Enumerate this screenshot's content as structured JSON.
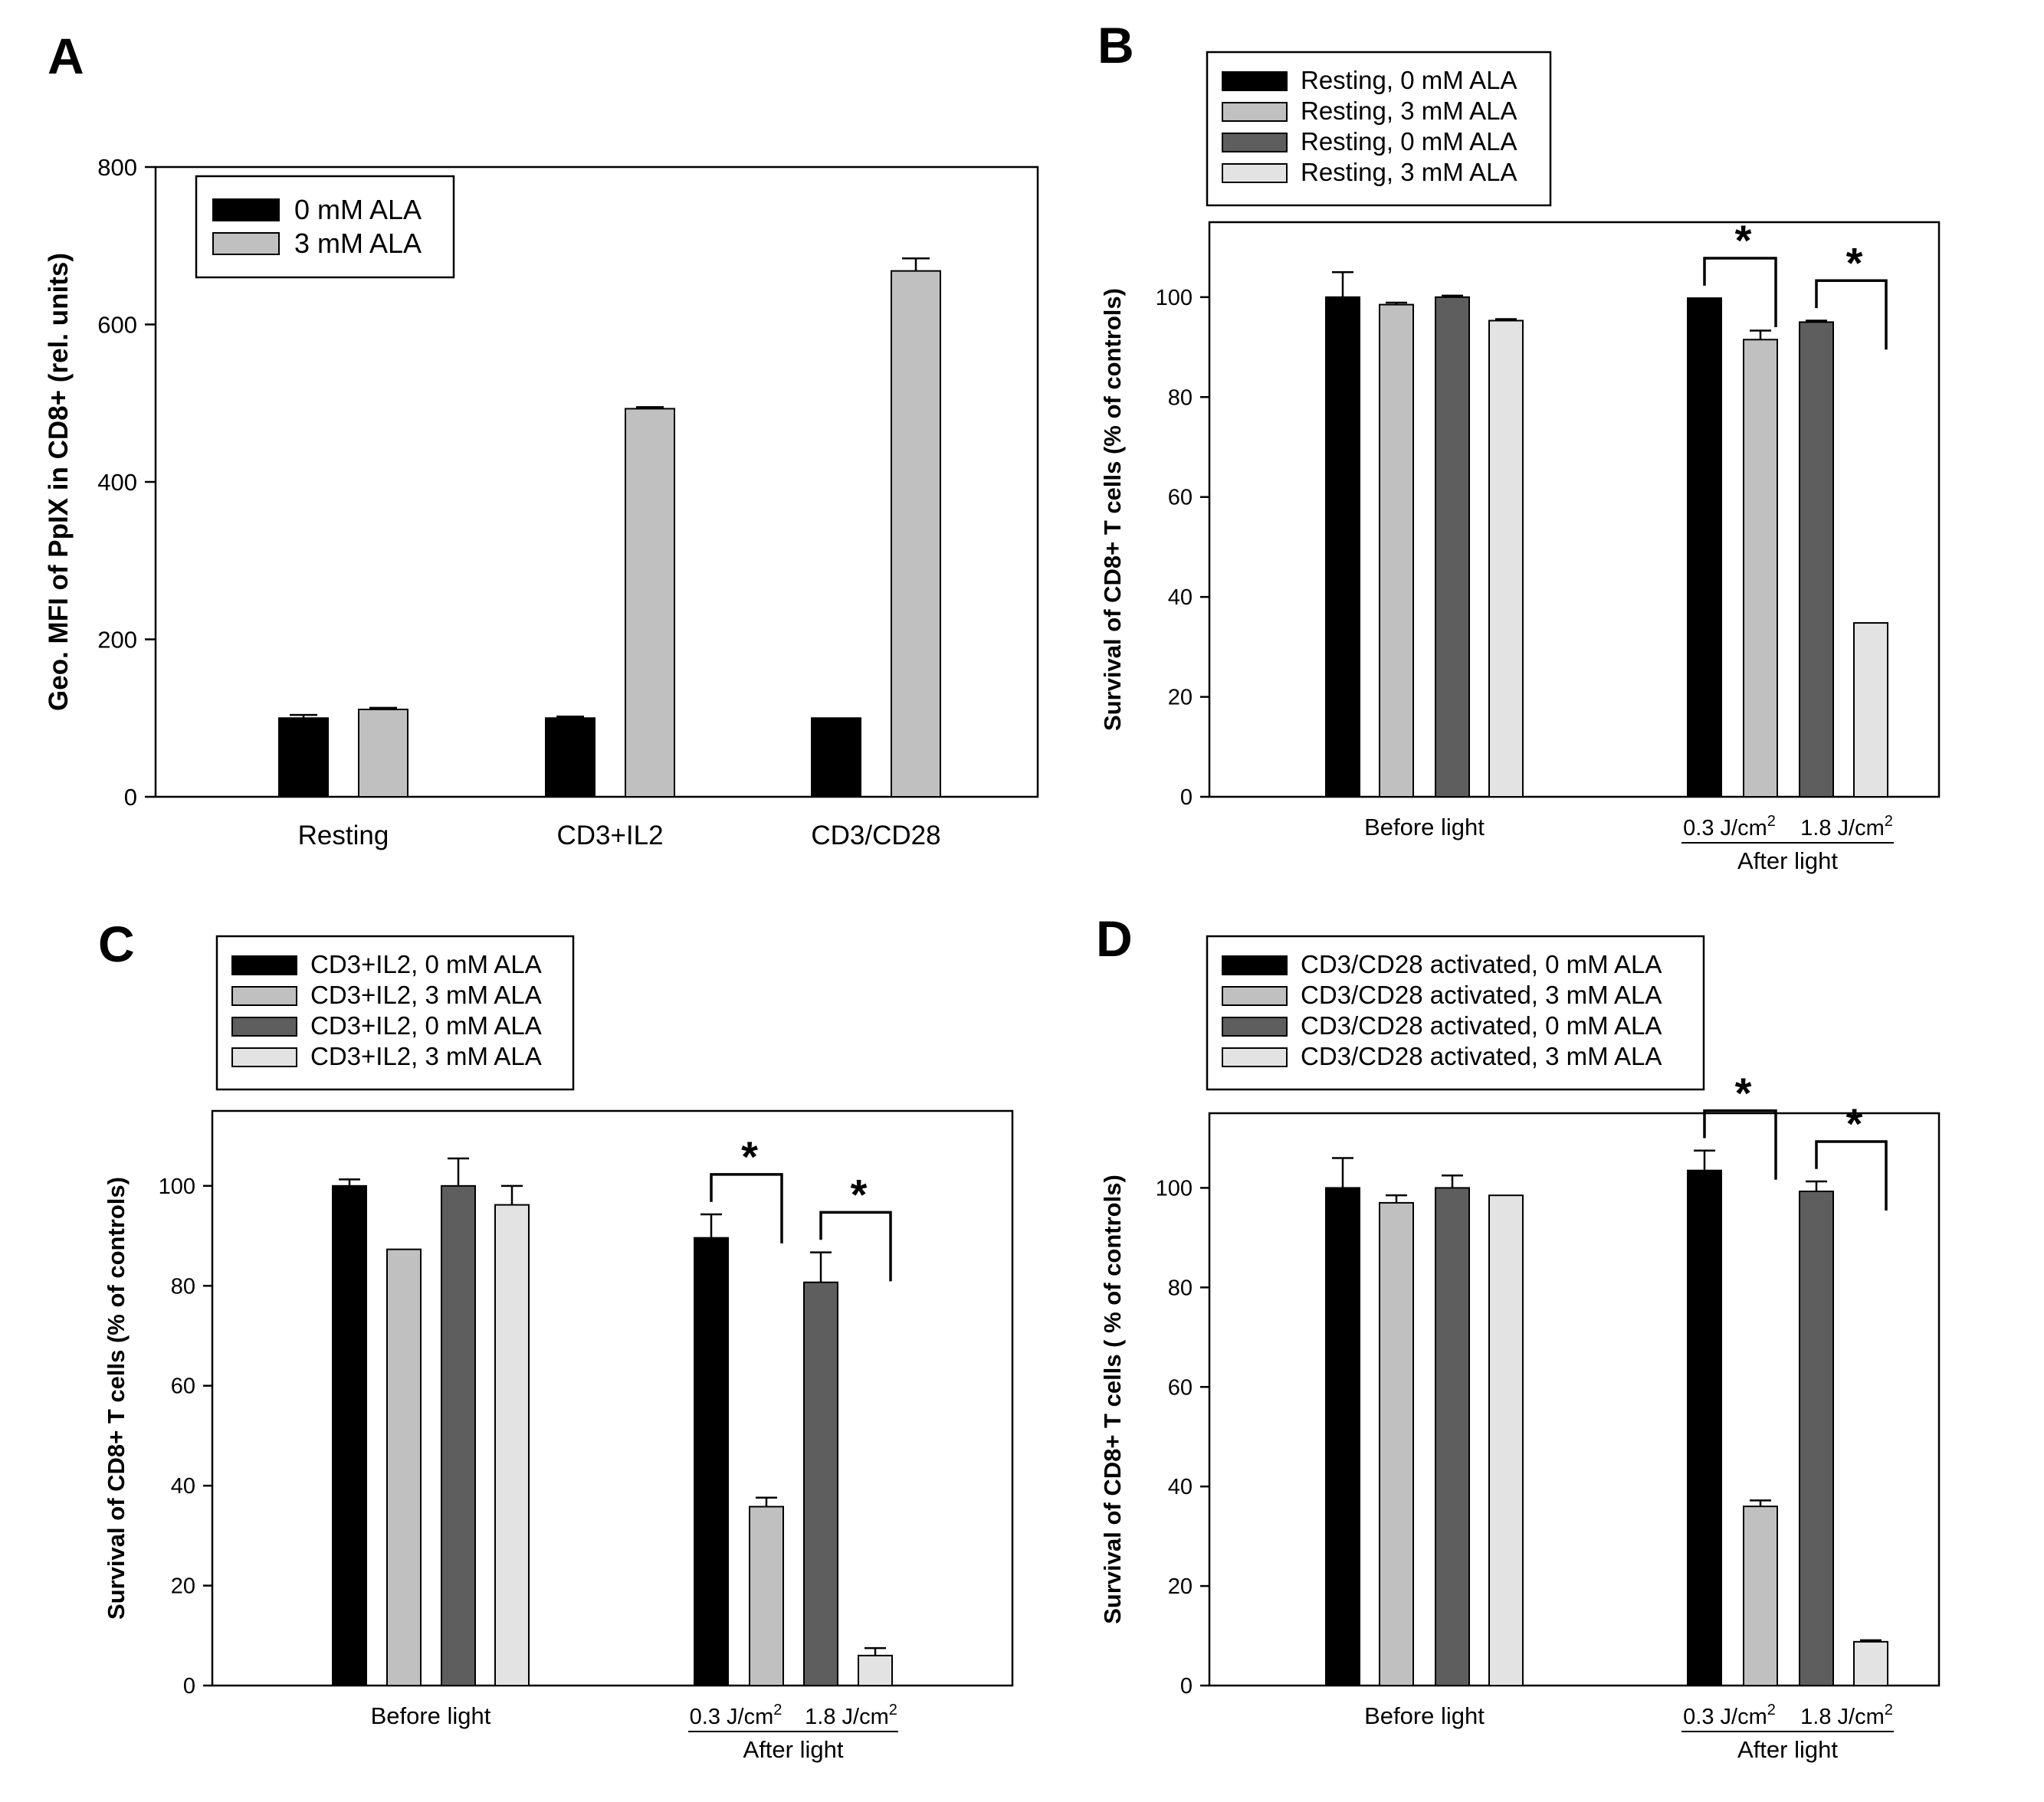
{
  "colors": {
    "black": "#000000",
    "light_gray": "#c0c0c0",
    "dark_gray": "#5e5e5e",
    "pale_gray": "#e3e3e3"
  },
  "chart_data": [
    {
      "panel": "A",
      "type": "bar",
      "ylabel": "Geo. MFI of PpIX in CD8+ (rel. units)",
      "xlabel": "",
      "ylim": [
        0,
        800
      ],
      "yticks": [
        "0",
        "200",
        "400",
        "600",
        "800"
      ],
      "categories": [
        "Resting",
        "CD3+IL2",
        "CD3/CD28"
      ],
      "legend_position": "top-left",
      "series": [
        {
          "name": "0 mM ALA",
          "color": "#000000",
          "values": [
            100,
            100,
            100
          ],
          "errors": [
            4,
            2,
            0
          ]
        },
        {
          "name": "3 mM ALA",
          "color": "#c0c0c0",
          "values": [
            111,
            493,
            668
          ],
          "errors": [
            2,
            2,
            16
          ]
        }
      ]
    },
    {
      "panel": "B",
      "type": "bar",
      "ylabel": "Survival of CD8+ T cells (% of controls)",
      "ylim": [
        0,
        115
      ],
      "yticks": [
        "0",
        "20",
        "40",
        "60",
        "80",
        "100"
      ],
      "group_labels": {
        "before": "Before light",
        "after": "After light",
        "dose1": "0.3 J/cm",
        "dose2": "1.8 J/cm",
        "sup": "2"
      },
      "legend_position": "above plot",
      "series": [
        {
          "name": "Resting, 0 mM ALA",
          "color": "#000000"
        },
        {
          "name": "Resting, 3 mM ALA",
          "color": "#c0c0c0"
        },
        {
          "name": "Resting, 0 mM ALA",
          "color": "#5e5e5e"
        },
        {
          "name": "Resting, 3 mM ALA",
          "color": "#e3e3e3"
        }
      ],
      "before_values": [
        100,
        98.5,
        100,
        95.3
      ],
      "before_errors": [
        5,
        0.4,
        0.3,
        0.3
      ],
      "after_values": [
        99.8,
        91.5,
        95,
        34.8
      ],
      "after_errors": [
        0,
        1.8,
        0.3,
        0
      ],
      "significance": [
        "*",
        "*"
      ]
    },
    {
      "panel": "C",
      "type": "bar",
      "ylabel": "Survival of CD8+ T cells (% of controls)",
      "ylim": [
        0,
        115
      ],
      "yticks": [
        "0",
        "20",
        "40",
        "60",
        "80",
        "100"
      ],
      "group_labels": {
        "before": "Before light",
        "after": "After light",
        "dose1": "0.3 J/cm",
        "dose2": "1.8 J/cm",
        "sup": "2"
      },
      "legend_position": "above plot",
      "series": [
        {
          "name": "CD3+IL2, 0 mM ALA",
          "color": "#000000"
        },
        {
          "name": "CD3+IL2, 3 mM ALA",
          "color": "#c0c0c0"
        },
        {
          "name": "CD3+IL2, 0 mM ALA",
          "color": "#5e5e5e"
        },
        {
          "name": "CD3+IL2, 3 mM ALA",
          "color": "#e3e3e3"
        }
      ],
      "before_values": [
        100,
        87.3,
        100,
        96.2
      ],
      "before_errors": [
        1.3,
        0,
        5.5,
        3.8
      ],
      "after_values": [
        89.6,
        35.8,
        80.7,
        6
      ],
      "after_errors": [
        4.7,
        1.8,
        6,
        1.5
      ],
      "significance": [
        "*",
        "*"
      ]
    },
    {
      "panel": "D",
      "type": "bar",
      "ylabel": "Survival of CD8+ T cells ( % of controls)",
      "ylim": [
        0,
        115
      ],
      "yticks": [
        "0",
        "20",
        "40",
        "60",
        "80",
        "100"
      ],
      "group_labels": {
        "before": "Before light",
        "after": "After light",
        "dose1": "0.3 J/cm",
        "dose2": "1.8 J/cm",
        "sup": "2"
      },
      "legend_position": "above plot",
      "series": [
        {
          "name": "CD3/CD28 activated, 0 mM ALA",
          "color": "#000000"
        },
        {
          "name": "CD3/CD28 activated, 3 mM ALA",
          "color": "#c0c0c0"
        },
        {
          "name": "CD3/CD28 activated, 0 mM ALA",
          "color": "#5e5e5e"
        },
        {
          "name": "CD3/CD28 activated, 3 mM ALA",
          "color": "#e3e3e3"
        }
      ],
      "before_values": [
        100,
        97,
        100,
        98.5
      ],
      "before_errors": [
        6,
        1.5,
        2.5,
        0
      ],
      "after_values": [
        103.5,
        36,
        99.3,
        8.8
      ],
      "after_errors": [
        4,
        1.2,
        2,
        0.3
      ],
      "significance": [
        "*",
        "*"
      ]
    }
  ]
}
